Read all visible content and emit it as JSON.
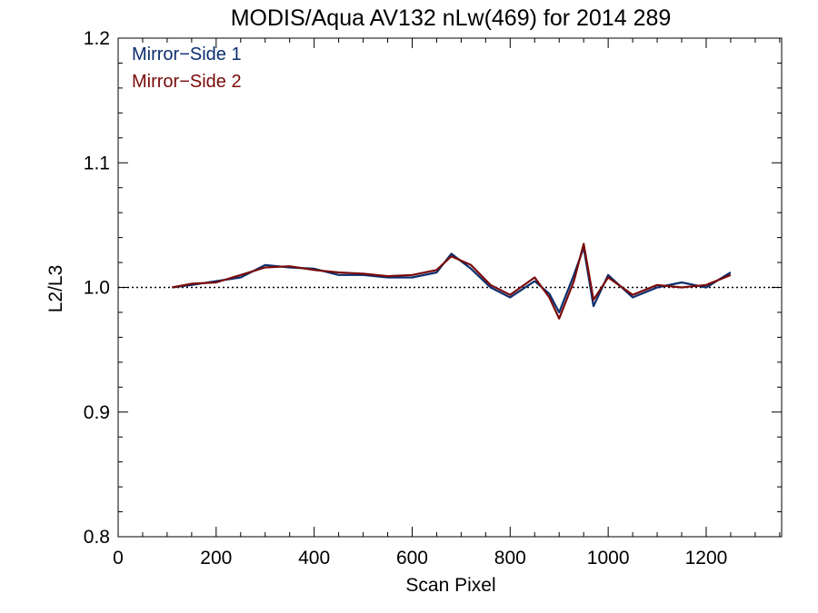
{
  "chart_data": {
    "type": "line",
    "title": "MODIS/Aqua AV132 nLw(469) for 2014 289",
    "xlabel": "Scan Pixel",
    "ylabel": "L2/L3",
    "xlim": [
      0,
      1354
    ],
    "ylim": [
      0.8,
      1.2
    ],
    "x_ticks": [
      0,
      200,
      400,
      600,
      800,
      1000,
      1200
    ],
    "y_ticks": [
      0.8,
      0.9,
      1.0,
      1.1,
      1.2
    ],
    "x_tick_labels": [
      "0",
      "200",
      "400",
      "600",
      "800",
      "1000",
      "1200"
    ],
    "y_tick_labels": [
      "0.8",
      "0.9",
      "1.0",
      "1.1",
      "1.2"
    ],
    "reference_line": {
      "y": 1.0,
      "style": "dotted"
    },
    "legend": {
      "placement": "top-left"
    },
    "series": [
      {
        "name": "Mirror−Side 1",
        "color": "#0b2f6e",
        "x": [
          110,
          150,
          200,
          250,
          300,
          350,
          400,
          450,
          500,
          550,
          600,
          650,
          680,
          720,
          760,
          800,
          850,
          880,
          900,
          930,
          950,
          970,
          1000,
          1050,
          1100,
          1150,
          1200,
          1250
        ],
        "values": [
          1.0,
          1.002,
          1.005,
          1.008,
          1.018,
          1.016,
          1.015,
          1.01,
          1.01,
          1.008,
          1.008,
          1.012,
          1.027,
          1.015,
          1.0,
          0.992,
          1.005,
          0.995,
          0.98,
          1.01,
          1.032,
          0.985,
          1.01,
          0.992,
          1.0,
          1.004,
          1.0,
          1.012
        ]
      },
      {
        "name": "Mirror−Side 2",
        "color": "#7a0a0a",
        "x": [
          110,
          150,
          200,
          250,
          300,
          350,
          400,
          450,
          500,
          550,
          600,
          650,
          680,
          720,
          760,
          800,
          850,
          880,
          900,
          930,
          950,
          970,
          1000,
          1050,
          1100,
          1150,
          1200,
          1250
        ],
        "values": [
          1.0,
          1.003,
          1.004,
          1.01,
          1.016,
          1.017,
          1.014,
          1.012,
          1.011,
          1.009,
          1.01,
          1.014,
          1.025,
          1.018,
          1.002,
          0.994,
          1.008,
          0.992,
          0.975,
          1.005,
          1.035,
          0.99,
          1.008,
          0.994,
          1.002,
          1.0,
          1.002,
          1.01
        ]
      }
    ]
  }
}
